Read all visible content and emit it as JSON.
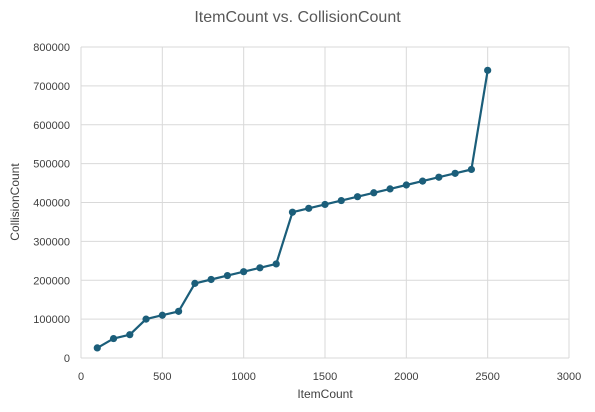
{
  "chart_data": {
    "type": "line",
    "title": "ItemCount vs. CollisionCount",
    "xlabel": "ItemCount",
    "ylabel": "CollisionCount",
    "xlim": [
      0,
      3000
    ],
    "ylim": [
      0,
      800000
    ],
    "xticks": [
      0,
      500,
      1000,
      1500,
      2000,
      2500,
      3000
    ],
    "yticks": [
      0,
      100000,
      200000,
      300000,
      400000,
      500000,
      600000,
      700000,
      800000
    ],
    "grid": true,
    "legend": "none",
    "color": "#1b5e7a",
    "x": [
      100,
      200,
      300,
      400,
      500,
      600,
      700,
      800,
      900,
      1000,
      1100,
      1200,
      1300,
      1400,
      1500,
      1600,
      1700,
      1800,
      1900,
      2000,
      2100,
      2200,
      2300,
      2400,
      2500
    ],
    "y": [
      26000,
      50000,
      60000,
      100000,
      110000,
      120000,
      192000,
      202000,
      212000,
      222000,
      232000,
      242000,
      375000,
      385000,
      395000,
      405000,
      415000,
      425000,
      435000,
      445000,
      455000,
      465000,
      475000,
      485000,
      740000
    ]
  }
}
